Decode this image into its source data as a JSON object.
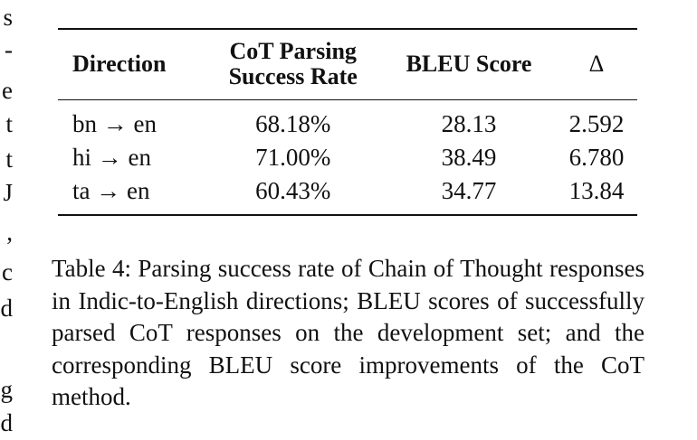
{
  "left_fragments": [
    "s",
    "-",
    "e",
    "t",
    "t",
    "J",
    ",",
    "c",
    "d",
    "g",
    "d"
  ],
  "table": {
    "headers": {
      "direction": "Direction",
      "cot_line1": "CoT Parsing",
      "cot_line2": "Success Rate",
      "bleu": "BLEU Score",
      "delta": "Δ"
    },
    "rows": [
      {
        "direction": "bn → en",
        "rate": "68.18%",
        "bleu": "28.13",
        "delta": "2.592"
      },
      {
        "direction": "hi → en",
        "rate": "71.00%",
        "bleu": "38.49",
        "delta": "6.780"
      },
      {
        "direction": "ta → en",
        "rate": "60.43%",
        "bleu": "34.77",
        "delta": "13.84"
      }
    ]
  },
  "caption": "Table 4: Parsing success rate of Chain of Thought responses in Indic-to-English directions; BLEU scores of successfully parsed CoT responses on the development set; and the corresponding BLEU score improvements of the CoT method."
}
